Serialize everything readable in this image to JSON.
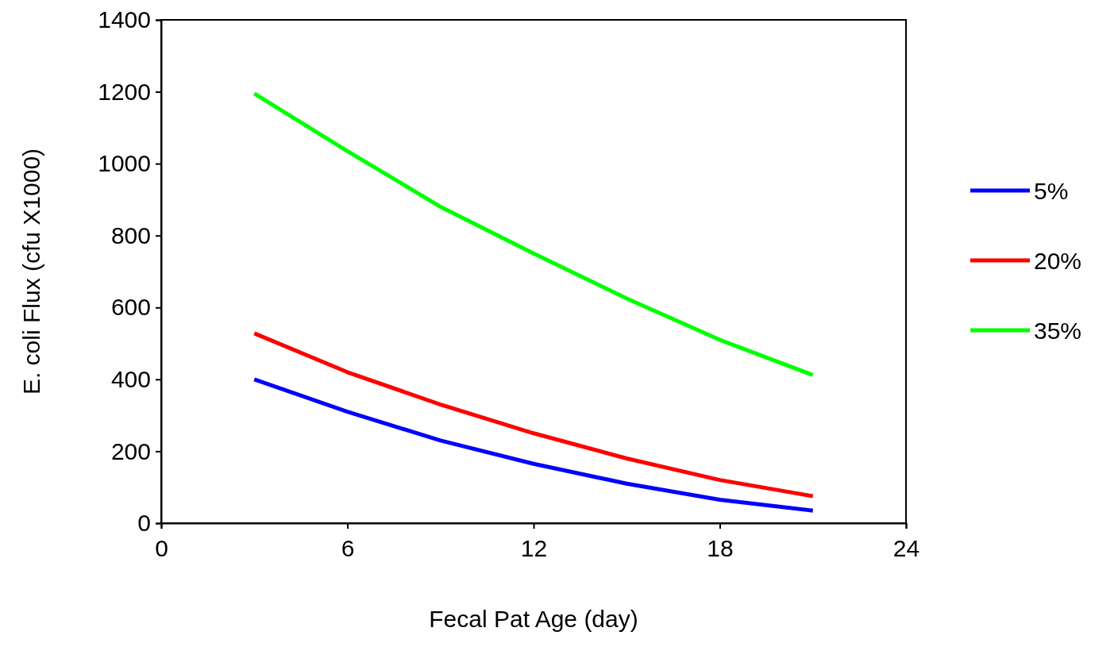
{
  "chart_data": {
    "type": "line",
    "xlabel": "Fecal Pat Age (day)",
    "ylabel": "E. coli Flux (cfu X1000)",
    "x": [
      3,
      6,
      9,
      12,
      15,
      18,
      21
    ],
    "xlim": [
      0,
      24
    ],
    "xticks": [
      0,
      6,
      12,
      18,
      24
    ],
    "ylim": [
      0,
      1400
    ],
    "yticks": [
      0,
      200,
      400,
      600,
      800,
      1000,
      1200,
      1400
    ],
    "grid": false,
    "legend": "right",
    "marker": "none",
    "line_style": "solid",
    "series": [
      {
        "name": "5%",
        "color": "#0000ff",
        "values": [
          400,
          310,
          230,
          165,
          110,
          65,
          35
        ]
      },
      {
        "name": "20%",
        "color": "#ff0000",
        "values": [
          528,
          420,
          330,
          250,
          180,
          120,
          75
        ]
      },
      {
        "name": "35%",
        "color": "#00ff00",
        "values": [
          1195,
          1035,
          880,
          750,
          625,
          510,
          412
        ]
      }
    ]
  }
}
